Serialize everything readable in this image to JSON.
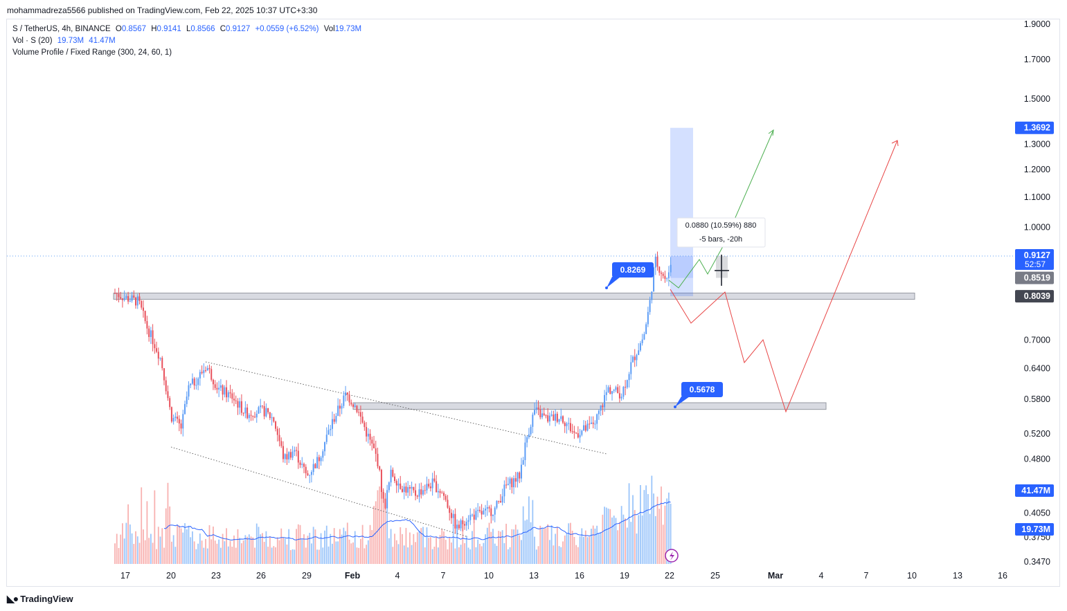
{
  "header": {
    "publisher_line": "mohammadreza5566 published on TradingView.com, Feb 22, 2025 10:37 UTC+3:30"
  },
  "legend": {
    "symbol": "S / TetherUS, 4h, BINANCE",
    "o_label": "O",
    "o_val": "0.8567",
    "h_label": "H",
    "h_val": "0.9141",
    "l_label": "L",
    "l_val": "0.8566",
    "c_label": "C",
    "c_val": "0.9127",
    "change": "+0.0559 (+6.52%)",
    "vol_label": "Vol",
    "vol_val": "19.73M",
    "vol_ind": "Vol · S (20)",
    "vol_ind_v1": "19.73M",
    "vol_ind_v2": "41.47M",
    "vp": "Volume Profile / Fixed Range (300, 24, 60, 1)"
  },
  "footer": {
    "brand": "TradingView",
    "brand_icon": "tradingview-logo-icon"
  },
  "colors": {
    "up": "#5b9cf6",
    "down": "#e8505b",
    "accent": "#2962ff",
    "green_path": "#4caf50",
    "red_path": "#e84545"
  },
  "chart_data": {
    "type": "candlestick",
    "symbol": "S/USDT",
    "timeframe": "4h",
    "exchange": "BINANCE",
    "y_axis": {
      "scale": "log",
      "range": [
        0.347,
        1.95
      ],
      "ticks": [
        "1.9000",
        "1.7000",
        "1.5000",
        "1.3000",
        "1.2000",
        "1.1000",
        "1.0000",
        "0.7000",
        "0.6400",
        "0.5800",
        "0.5200",
        "0.4800",
        "0.4050",
        "0.3750",
        "0.3470"
      ]
    },
    "x_axis": {
      "ticks": [
        "17",
        "20",
        "23",
        "26",
        "29",
        "Feb",
        "4",
        "7",
        "10",
        "13",
        "16",
        "19",
        "22",
        "25",
        "Mar",
        "4",
        "7",
        "10",
        "13",
        "16"
      ]
    },
    "price_labels": [
      {
        "text": "1.3692",
        "value": 1.3692,
        "style": "blue"
      },
      {
        "text": "0.9127",
        "sub": "52:57",
        "value": 0.9127,
        "style": "blue"
      },
      {
        "text": "0.8519",
        "value": 0.8519,
        "style": "gray"
      },
      {
        "text": "0.8039",
        "value": 0.8039,
        "style": "dark"
      },
      {
        "text": "41.47M",
        "style": "blue"
      },
      {
        "text": "19.73M",
        "style": "blue"
      }
    ],
    "callouts": [
      {
        "text": "0.8269",
        "price": 0.8269
      },
      {
        "text": "0.5678",
        "price": 0.5678
      }
    ],
    "measure": {
      "line1": "0.0880 (10.59%) 880",
      "line2": "-5 bars, -20h"
    },
    "zones": [
      {
        "name": "resistance-zone",
        "from": 0.796,
        "to": 0.812
      },
      {
        "name": "support-zone",
        "from": 0.562,
        "to": 0.574
      }
    ],
    "current_price": 0.9127
  }
}
